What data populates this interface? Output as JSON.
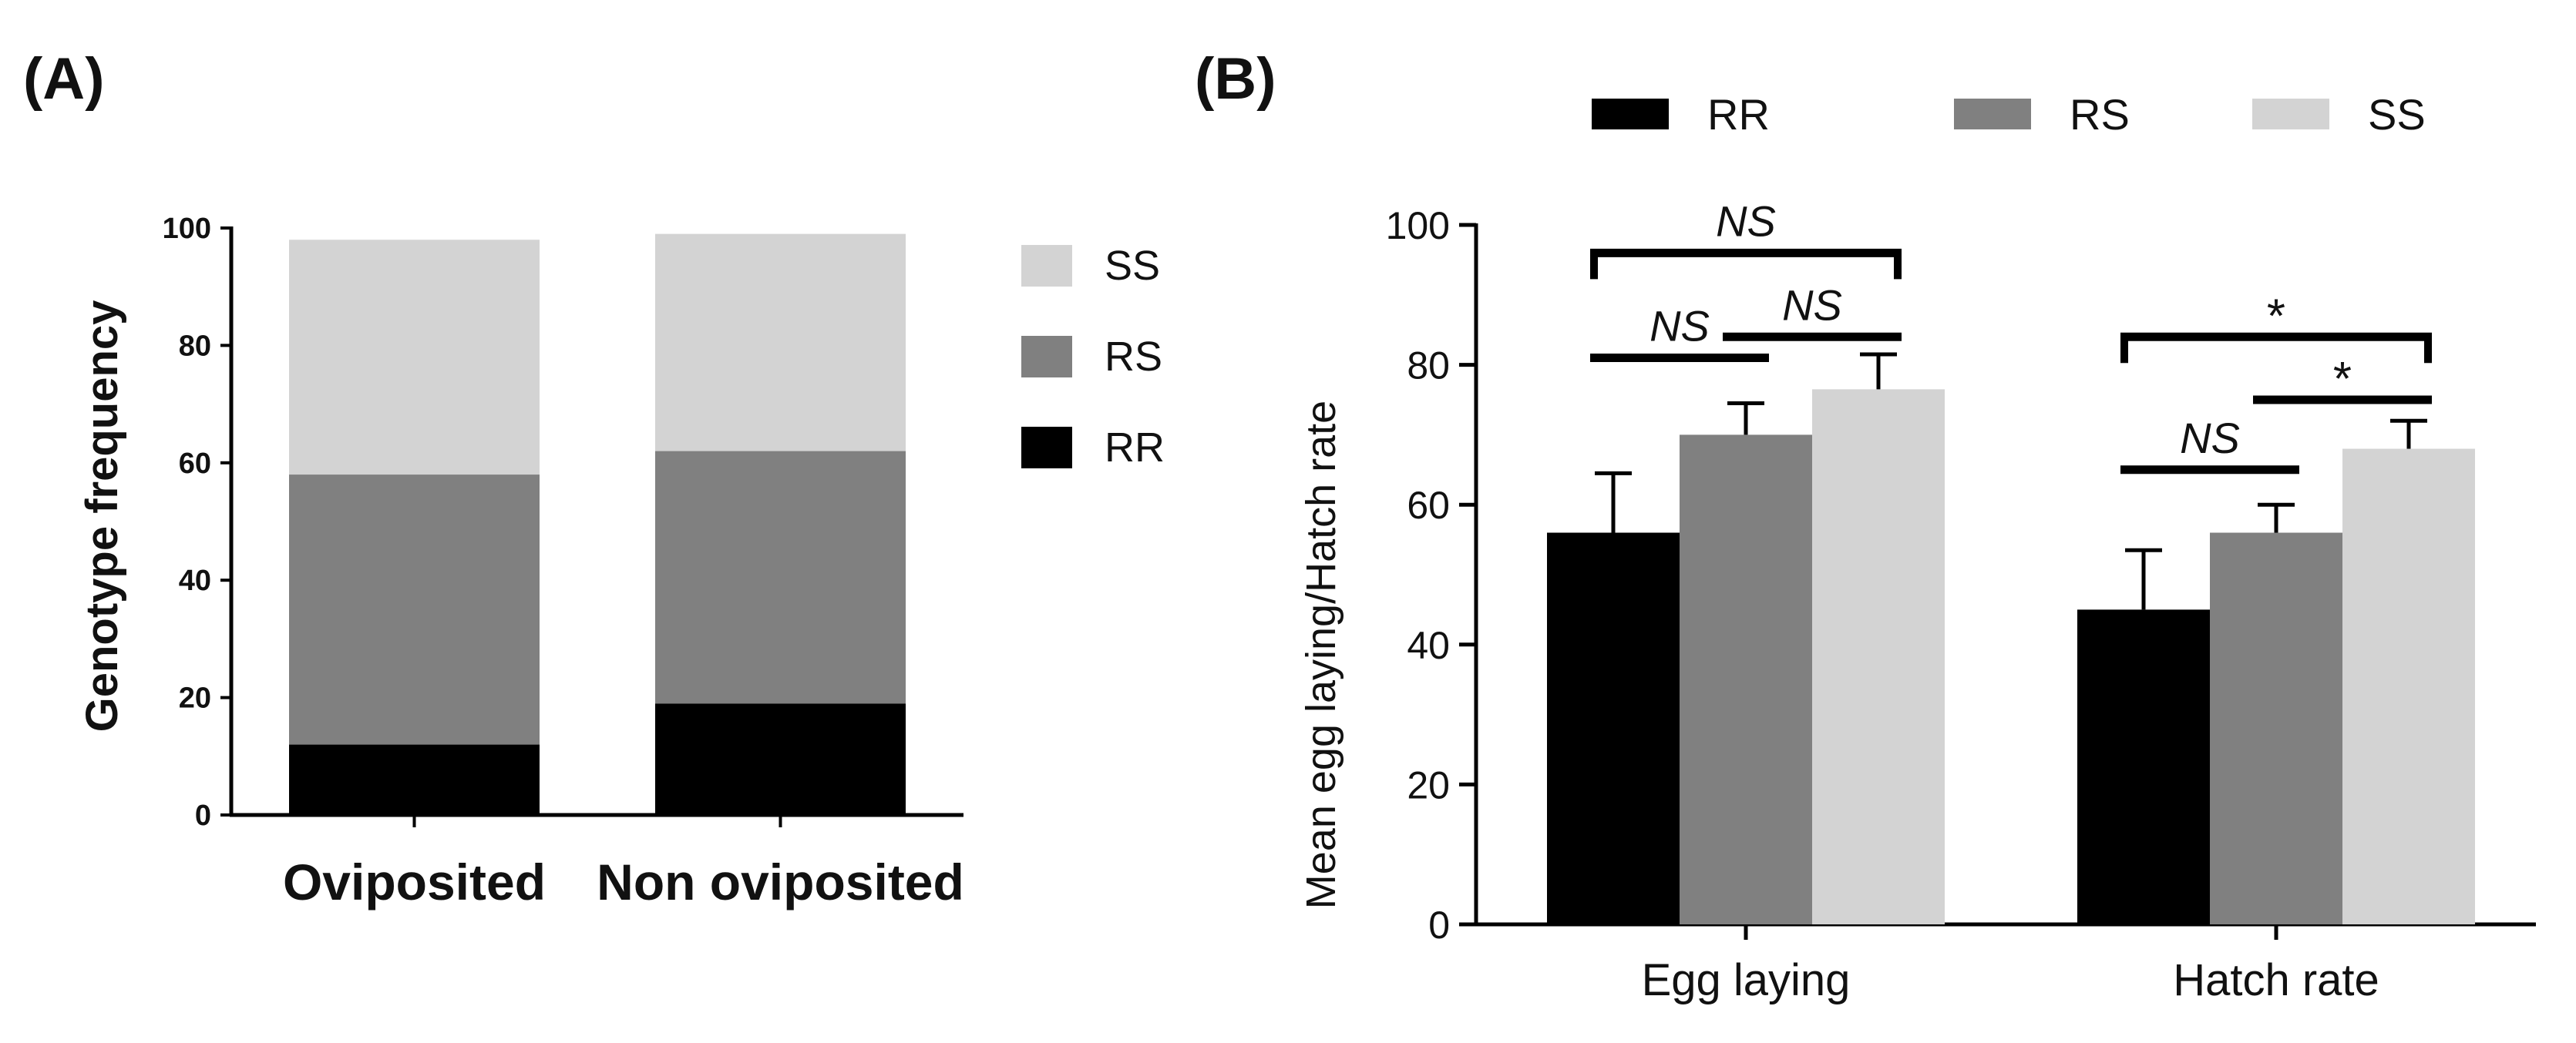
{
  "chart_data": [
    {
      "panel": "(A)",
      "type": "bar",
      "stacked": true,
      "categories": [
        "Oviposited",
        "Non oviposited"
      ],
      "series": [
        {
          "name": "RR",
          "color": "#000000",
          "values": [
            12,
            19
          ]
        },
        {
          "name": "RS",
          "color": "#808080",
          "values": [
            46,
            43
          ]
        },
        {
          "name": "SS",
          "color": "#d3d3d3",
          "values": [
            40,
            37
          ]
        }
      ],
      "legend_order": [
        "SS",
        "RS",
        "RR"
      ],
      "legend_position": "right",
      "title": "",
      "xlabel": "",
      "ylabel": "Genotype frequency",
      "ylim": [
        0,
        100
      ],
      "yticks": [
        0,
        20,
        40,
        60,
        80,
        100
      ]
    },
    {
      "panel": "(B)",
      "type": "bar",
      "categories": [
        "Egg laying",
        "Hatch rate"
      ],
      "series": [
        {
          "name": "RR",
          "color": "#000000",
          "values": [
            56,
            45
          ],
          "errors": [
            8.5,
            8.5
          ]
        },
        {
          "name": "RS",
          "color": "#808080",
          "values": [
            70,
            56
          ],
          "errors": [
            4.5,
            4
          ]
        },
        {
          "name": "SS",
          "color": "#d3d3d3",
          "values": [
            76.5,
            68
          ],
          "errors": [
            5,
            4
          ]
        }
      ],
      "legend_position": "top",
      "title": "",
      "xlabel": "",
      "ylabel": "Mean egg laying/Hatch rate",
      "ylim": [
        0,
        100
      ],
      "yticks": [
        0,
        20,
        40,
        60,
        80,
        100
      ],
      "annotations": [
        {
          "label": "NS",
          "category": "Egg laying",
          "from": "RR",
          "to": "SS",
          "y": 96
        },
        {
          "label": "NS",
          "category": "Egg laying",
          "from": "RR",
          "to": "RS",
          "y": 81
        },
        {
          "label": "NS",
          "category": "Egg laying",
          "from": "RS",
          "to": "SS",
          "y": 84
        },
        {
          "label": "*",
          "category": "Hatch rate",
          "from": "RR",
          "to": "SS",
          "y": 84
        },
        {
          "label": "NS",
          "category": "Hatch rate",
          "from": "RR",
          "to": "RS",
          "y": 65
        },
        {
          "label": "*",
          "category": "Hatch rate",
          "from": "RS",
          "to": "SS",
          "y": 75
        }
      ]
    }
  ]
}
